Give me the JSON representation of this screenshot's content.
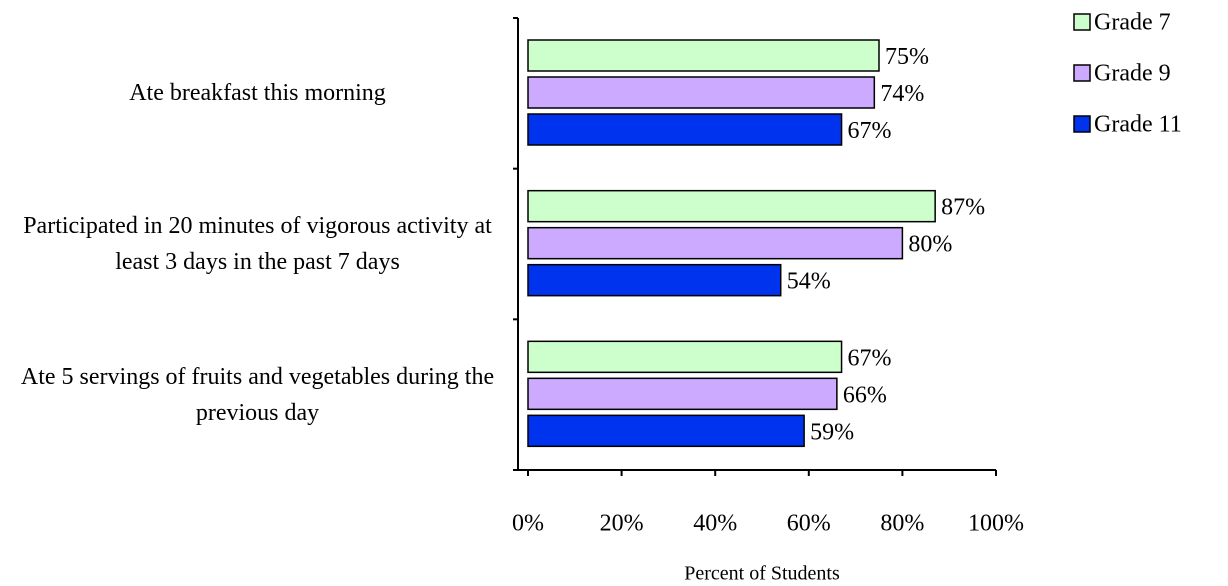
{
  "chart_data": {
    "type": "barh",
    "categories": [
      "Ate breakfast this morning",
      "Participated in 20 minutes of vigorous activity at least 3 days in the past 7 days",
      "Ate 5 servings of fruits and vegetables during the previous day"
    ],
    "series": [
      {
        "name": "Grade 7",
        "color": "#ccffcc",
        "values": [
          75,
          87,
          67
        ],
        "value_labels": [
          "75%",
          "87%",
          "67%"
        ]
      },
      {
        "name": "Grade 9",
        "color": "#ccaaff",
        "values": [
          74,
          80,
          66
        ],
        "value_labels": [
          "74%",
          "80%",
          "66%"
        ]
      },
      {
        "name": "Grade 11",
        "color": "#0033ee",
        "values": [
          67,
          54,
          59
        ],
        "value_labels": [
          "67%",
          "54%",
          "59%"
        ]
      }
    ],
    "xlim": [
      0,
      100
    ],
    "xticks": [
      {
        "value": 0,
        "label": "0%"
      },
      {
        "value": 20,
        "label": "20%"
      },
      {
        "value": 40,
        "label": "40%"
      },
      {
        "value": 60,
        "label": "60%"
      },
      {
        "value": 80,
        "label": "80%"
      },
      {
        "value": 100,
        "label": "100%"
      }
    ],
    "xlabel": "Percent of Students",
    "legend": "right"
  }
}
